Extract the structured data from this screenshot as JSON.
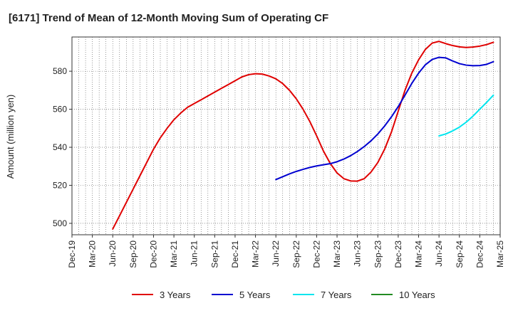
{
  "chart_data": {
    "type": "line",
    "title": "[6171]  Trend of Mean of 12-Month Moving Sum of Operating CF",
    "xlabel": "",
    "ylabel": "Amount (million yen)",
    "ylim": [
      494,
      598
    ],
    "yticks": [
      500,
      520,
      540,
      560,
      580
    ],
    "x_tick_labels": [
      "Dec-19",
      "Mar-20",
      "Jun-20",
      "Sep-20",
      "Dec-20",
      "Mar-21",
      "Jun-21",
      "Sep-21",
      "Dec-21",
      "Mar-22",
      "Jun-22",
      "Sep-22",
      "Dec-22",
      "Mar-23",
      "Jun-23",
      "Sep-23",
      "Dec-23",
      "Mar-24",
      "Jun-24",
      "Sep-24",
      "Dec-24",
      "Mar-25"
    ],
    "grid": true,
    "legend_position": "bottom",
    "series": [
      {
        "name": "3 Years",
        "color": "#e00000",
        "points": [
          [
            6,
            497
          ],
          [
            7,
            504
          ],
          [
            8,
            511
          ],
          [
            9,
            518
          ],
          [
            10,
            525
          ],
          [
            11,
            532
          ],
          [
            12,
            539
          ],
          [
            13,
            545
          ],
          [
            14,
            550
          ],
          [
            15,
            554.5
          ],
          [
            16,
            558
          ],
          [
            17,
            561
          ],
          [
            18,
            563
          ],
          [
            19,
            565
          ],
          [
            20,
            567
          ],
          [
            21,
            569
          ],
          [
            22,
            571
          ],
          [
            23,
            573
          ],
          [
            24,
            575
          ],
          [
            25,
            577
          ],
          [
            26,
            578.2
          ],
          [
            27,
            578.7
          ],
          [
            28,
            578.5
          ],
          [
            29,
            577.5
          ],
          [
            30,
            576
          ],
          [
            31,
            573.5
          ],
          [
            32,
            570
          ],
          [
            33,
            565.5
          ],
          [
            34,
            560
          ],
          [
            35,
            553.5
          ],
          [
            36,
            546
          ],
          [
            37,
            538
          ],
          [
            38,
            531.5
          ],
          [
            39,
            526.5
          ],
          [
            40,
            523.5
          ],
          [
            41,
            522.3
          ],
          [
            42,
            522.2
          ],
          [
            43,
            523.5
          ],
          [
            44,
            527
          ],
          [
            45,
            532
          ],
          [
            46,
            539
          ],
          [
            47,
            548
          ],
          [
            48,
            559
          ],
          [
            49,
            570
          ],
          [
            50,
            579
          ],
          [
            51,
            586
          ],
          [
            52,
            591.5
          ],
          [
            53,
            594.8
          ],
          [
            54,
            595.7
          ],
          [
            55,
            594.5
          ],
          [
            56,
            593.5
          ],
          [
            57,
            592.8
          ],
          [
            58,
            592.5
          ],
          [
            59,
            592.7
          ],
          [
            60,
            593.2
          ],
          [
            61,
            594
          ],
          [
            62,
            595.2
          ]
        ]
      },
      {
        "name": "5 Years",
        "color": "#0000d0",
        "points": [
          [
            30,
            523
          ],
          [
            31,
            524.5
          ],
          [
            32,
            526
          ],
          [
            33,
            527.3
          ],
          [
            34,
            528.4
          ],
          [
            35,
            529.4
          ],
          [
            36,
            530.2
          ],
          [
            37,
            530.8
          ],
          [
            38,
            531.4
          ],
          [
            39,
            532.4
          ],
          [
            40,
            533.8
          ],
          [
            41,
            535.6
          ],
          [
            42,
            537.8
          ],
          [
            43,
            540.4
          ],
          [
            44,
            543.4
          ],
          [
            45,
            547
          ],
          [
            46,
            551.2
          ],
          [
            47,
            556
          ],
          [
            48,
            561.4
          ],
          [
            49,
            567.4
          ],
          [
            50,
            573.6
          ],
          [
            51,
            579
          ],
          [
            52,
            583.4
          ],
          [
            53,
            586.2
          ],
          [
            54,
            587.3
          ],
          [
            55,
            587
          ],
          [
            56,
            585.4
          ],
          [
            57,
            584
          ],
          [
            58,
            583.2
          ],
          [
            59,
            582.9
          ],
          [
            60,
            583
          ],
          [
            61,
            583.6
          ],
          [
            62,
            585
          ]
        ]
      },
      {
        "name": "7 Years",
        "color": "#00e5ee",
        "points": [
          [
            54,
            546
          ],
          [
            55,
            547
          ],
          [
            56,
            548.6
          ],
          [
            57,
            550.6
          ],
          [
            58,
            553.2
          ],
          [
            59,
            556.4
          ],
          [
            60,
            560
          ],
          [
            61,
            563.6
          ],
          [
            62,
            567.4
          ]
        ]
      },
      {
        "name": "10 Years",
        "color": "#228b22",
        "points": []
      }
    ]
  }
}
